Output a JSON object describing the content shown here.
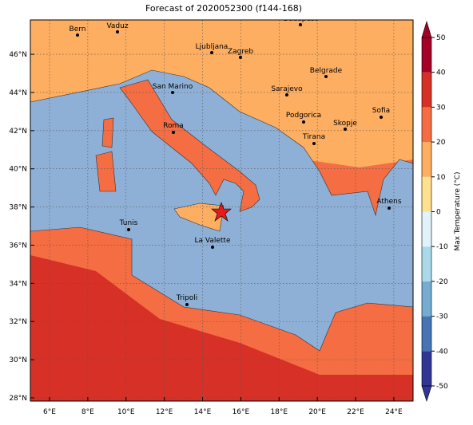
{
  "title": "Forecast of 2020052300 (f144-168)",
  "cities": [
    "Bern",
    "Vaduz",
    "Budapest",
    "Ljubljana",
    "Zagreb",
    "Belgrade",
    "San Marino",
    "Sarajevo",
    "Sofia",
    "Podgorica",
    "Skopje",
    "Roma",
    "Tirana",
    "Athens",
    "Tunis",
    "La Valette",
    "Tripoli"
  ],
  "lon_labels": [
    "6°E",
    "8°E",
    "10°E",
    "12°E",
    "14°E",
    "16°E",
    "18°E",
    "20°E",
    "22°E",
    "24°E"
  ],
  "lat_labels": [
    "28°N",
    "30°N",
    "32°N",
    "34°N",
    "36°N",
    "38°N",
    "40°N",
    "42°N",
    "44°N",
    "46°N"
  ],
  "colorbar": {
    "label": "Max Temperature (°C)",
    "ticks": [
      -50,
      -40,
      -30,
      -20,
      -10,
      0,
      10,
      20,
      30,
      40,
      50
    ],
    "colors": [
      "#313695",
      "#4575b4",
      "#74add1",
      "#abd9e9",
      "#e0f3f8",
      "#fee090",
      "#fdae61",
      "#f46d43",
      "#d73027",
      "#a50026"
    ]
  }
}
